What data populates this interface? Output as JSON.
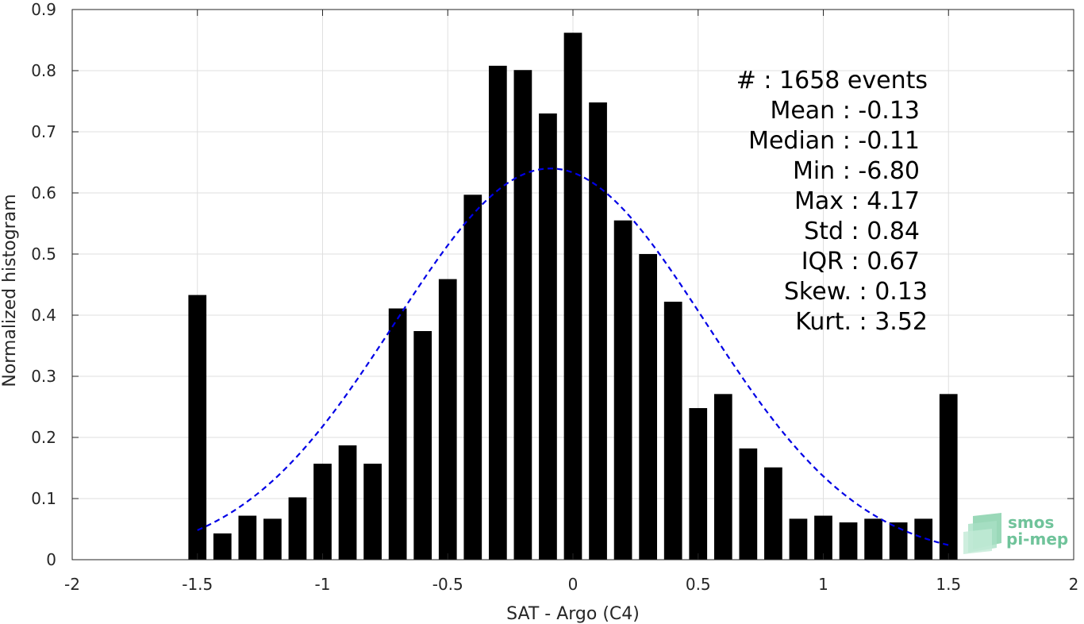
{
  "chart_data": {
    "type": "bar",
    "xlabel": "SAT - Argo (C4)",
    "ylabel": "Normalized histogram",
    "xlim": [
      -2,
      2
    ],
    "ylim": [
      0,
      0.9
    ],
    "xticks": [
      -2,
      -1.5,
      -1,
      -0.5,
      0,
      0.5,
      1,
      1.5,
      2
    ],
    "xtick_labels": [
      "-2",
      "-1.5",
      "-1",
      "-0.5",
      "0",
      "0.5",
      "1",
      "1.5",
      "2"
    ],
    "yticks": [
      0,
      0.1,
      0.2,
      0.3,
      0.4,
      0.5,
      0.6,
      0.7,
      0.8,
      0.9
    ],
    "ytick_labels": [
      "0",
      "0.1",
      "0.2",
      "0.3",
      "0.4",
      "0.5",
      "0.6",
      "0.7",
      "0.8",
      "0.9"
    ],
    "grid": true,
    "bar_color": "#000000",
    "bars": [
      {
        "x": -1.5,
        "y": 0.433
      },
      {
        "x": -1.4,
        "y": 0.043
      },
      {
        "x": -1.3,
        "y": 0.072
      },
      {
        "x": -1.2,
        "y": 0.067
      },
      {
        "x": -1.1,
        "y": 0.102
      },
      {
        "x": -1.0,
        "y": 0.157
      },
      {
        "x": -0.9,
        "y": 0.187
      },
      {
        "x": -0.8,
        "y": 0.157
      },
      {
        "x": -0.7,
        "y": 0.411
      },
      {
        "x": -0.6,
        "y": 0.374
      },
      {
        "x": -0.5,
        "y": 0.459
      },
      {
        "x": -0.4,
        "y": 0.597
      },
      {
        "x": -0.3,
        "y": 0.808
      },
      {
        "x": -0.2,
        "y": 0.801
      },
      {
        "x": -0.1,
        "y": 0.73
      },
      {
        "x": 0.0,
        "y": 0.862
      },
      {
        "x": 0.1,
        "y": 0.748
      },
      {
        "x": 0.2,
        "y": 0.555
      },
      {
        "x": 0.3,
        "y": 0.5
      },
      {
        "x": 0.4,
        "y": 0.422
      },
      {
        "x": 0.5,
        "y": 0.248
      },
      {
        "x": 0.6,
        "y": 0.271
      },
      {
        "x": 0.7,
        "y": 0.182
      },
      {
        "x": 0.8,
        "y": 0.151
      },
      {
        "x": 0.9,
        "y": 0.067
      },
      {
        "x": 1.0,
        "y": 0.072
      },
      {
        "x": 1.1,
        "y": 0.061
      },
      {
        "x": 1.2,
        "y": 0.067
      },
      {
        "x": 1.3,
        "y": 0.061
      },
      {
        "x": 1.4,
        "y": 0.067
      },
      {
        "x": 1.5,
        "y": 0.271
      }
    ],
    "fit_curve": {
      "style": "dashed",
      "color": "#0000e6",
      "mean": -0.09,
      "std": 0.62,
      "peak": 0.64,
      "x_range": [
        -1.5,
        1.5
      ]
    },
    "stats": [
      {
        "label": "#  : 1658 events"
      },
      {
        "label": "Mean : -0.13"
      },
      {
        "label": "Median : -0.11"
      },
      {
        "label": "Min : -6.80"
      },
      {
        "label": "Max : 4.17"
      },
      {
        "label": "Std : 0.84"
      },
      {
        "label": "IQR : 0.67"
      },
      {
        "label": "Skew. : 0.13"
      },
      {
        "label": "Kurt. : 3.52"
      }
    ],
    "logo": {
      "line1": "smos",
      "line2": "pi-mep",
      "color": "#6fc39a"
    }
  }
}
